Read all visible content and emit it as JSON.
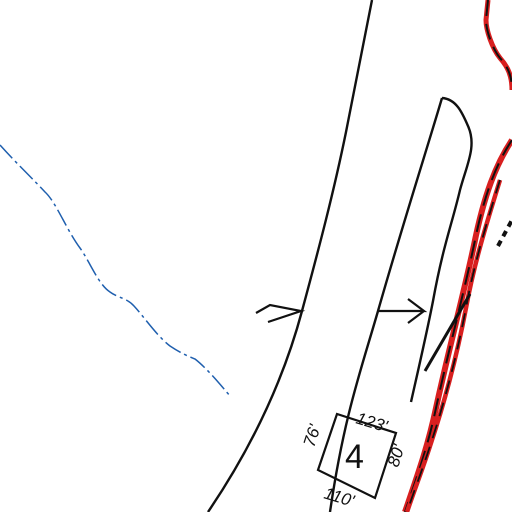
{
  "map": {
    "lot_number": "4",
    "dimensions": {
      "top": "123'",
      "left": "76'",
      "bottom": "110'",
      "right": "80'"
    },
    "colors": {
      "boundary_line": "#111111",
      "stream": "#1f5fae",
      "highlighted_parcel": "#d81f1f"
    },
    "features": [
      "road-centerline",
      "stream-line",
      "highlighted-parcel-boundary",
      "lot-outline"
    ]
  }
}
